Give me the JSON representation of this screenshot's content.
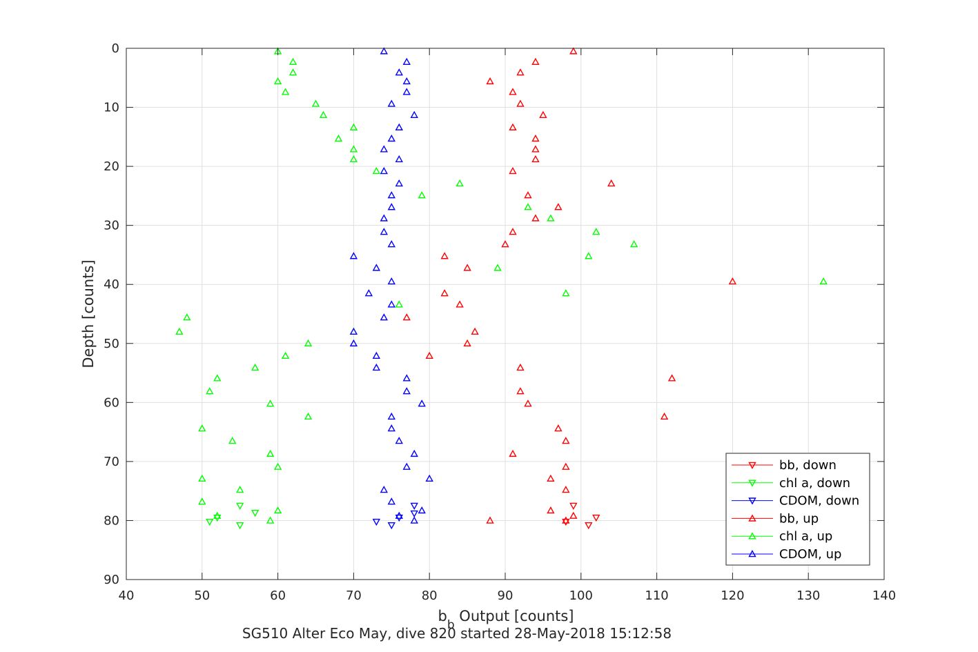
{
  "chart_data": {
    "type": "scatter",
    "title": "",
    "xlabel_main": "b",
    "xlabel_sub": "b",
    "xlabel_rest": " Output [counts]",
    "ylabel": "Depth [counts]",
    "caption": "SG510 Alter Eco May, dive 820 started 28-May-2018 15:12:58",
    "xlim": [
      40,
      140
    ],
    "ylim": [
      0,
      90
    ],
    "y_reversed": true,
    "grid": true,
    "legend_placement": "bottom-right",
    "xticks": [
      "40",
      "50",
      "60",
      "70",
      "80",
      "90",
      "100",
      "110",
      "120",
      "130",
      "140"
    ],
    "yticks": [
      "0",
      "10",
      "20",
      "30",
      "40",
      "50",
      "60",
      "70",
      "80",
      "90"
    ],
    "series": [
      {
        "name": "bb, down",
        "color": "#ff0000",
        "marker": "triangle-down",
        "points": [
          [
            99,
            77.5
          ],
          [
            102,
            79.5
          ],
          [
            101,
            80.8
          ]
        ]
      },
      {
        "name": "chl a, down",
        "color": "#00ff00",
        "marker": "triangle-down",
        "points": [
          [
            52,
            79.5
          ]
        ]
      },
      {
        "name": "CDOM, down",
        "color": "#0000ff",
        "marker": "triangle-down",
        "points": [
          [
            78,
            77.5
          ],
          [
            78,
            78.8
          ],
          [
            76,
            79.5
          ],
          [
            73,
            80.2
          ]
        ]
      },
      {
        "name": "bb, up",
        "color": "#ff0000",
        "marker": "triangle-up",
        "points": [
          [
            99,
            0.5
          ],
          [
            94,
            2.3
          ],
          [
            92,
            4.1
          ],
          [
            88,
            5.6
          ],
          [
            91,
            7.4
          ],
          [
            92,
            9.4
          ],
          [
            95,
            11.3
          ],
          [
            91,
            13.4
          ],
          [
            94,
            15.3
          ],
          [
            94,
            17.1
          ],
          [
            94,
            18.8
          ],
          [
            91,
            20.8
          ],
          [
            104,
            22.9
          ],
          [
            93,
            24.9
          ],
          [
            97,
            26.9
          ],
          [
            94,
            28.8
          ],
          [
            91,
            31.1
          ],
          [
            90,
            33.2
          ],
          [
            82,
            35.2
          ],
          [
            85,
            37.2
          ],
          [
            120,
            39.5
          ],
          [
            82,
            41.5
          ],
          [
            84,
            43.4
          ],
          [
            77,
            45.6
          ],
          [
            86,
            48.0
          ],
          [
            85,
            50.0
          ],
          [
            80,
            52.1
          ],
          [
            92,
            54.1
          ],
          [
            112,
            55.9
          ],
          [
            92,
            58.1
          ],
          [
            93,
            60.2
          ],
          [
            111,
            62.4
          ],
          [
            97,
            64.4
          ],
          [
            98,
            66.5
          ],
          [
            91,
            68.7
          ],
          [
            98,
            70.9
          ],
          [
            96,
            72.9
          ],
          [
            98,
            74.8
          ],
          [
            96,
            78.3
          ],
          [
            99,
            79.2
          ],
          [
            98,
            80.0
          ],
          [
            88,
            80.0
          ]
        ]
      },
      {
        "name": "chl a, up",
        "color": "#00ff00",
        "marker": "triangle-up",
        "points": [
          [
            60,
            0.5
          ],
          [
            62,
            2.3
          ],
          [
            62,
            4.1
          ],
          [
            60,
            5.6
          ],
          [
            61,
            7.4
          ],
          [
            65,
            9.4
          ],
          [
            66,
            11.3
          ],
          [
            70,
            13.4
          ],
          [
            68,
            15.3
          ],
          [
            70,
            17.1
          ],
          [
            70,
            18.8
          ],
          [
            73,
            20.8
          ],
          [
            84,
            22.9
          ],
          [
            79,
            24.9
          ],
          [
            93,
            26.9
          ],
          [
            96,
            28.8
          ],
          [
            102,
            31.1
          ],
          [
            107,
            33.2
          ],
          [
            101,
            35.2
          ],
          [
            89,
            37.2
          ],
          [
            132,
            39.5
          ],
          [
            98,
            41.5
          ],
          [
            76,
            43.4
          ],
          [
            48,
            45.6
          ],
          [
            47,
            48.0
          ],
          [
            64,
            50.0
          ],
          [
            61,
            52.1
          ],
          [
            57,
            54.1
          ],
          [
            52,
            55.9
          ],
          [
            51,
            58.1
          ],
          [
            59,
            60.2
          ],
          [
            64,
            62.4
          ],
          [
            50,
            64.4
          ],
          [
            54,
            66.5
          ],
          [
            59,
            68.7
          ],
          [
            60,
            70.9
          ],
          [
            50,
            72.9
          ],
          [
            55,
            74.8
          ],
          [
            50,
            76.8
          ],
          [
            60,
            78.3
          ],
          [
            52,
            79.2
          ],
          [
            59,
            80.0
          ]
        ]
      },
      {
        "name": "CDOM, up",
        "color": "#0000ff",
        "marker": "triangle-up",
        "points": [
          [
            74,
            0.5
          ],
          [
            77,
            2.3
          ],
          [
            76,
            4.1
          ],
          [
            77,
            5.6
          ],
          [
            77,
            7.4
          ],
          [
            75,
            9.4
          ],
          [
            78,
            11.3
          ],
          [
            76,
            13.4
          ],
          [
            75,
            15.3
          ],
          [
            74,
            17.1
          ],
          [
            76,
            18.8
          ],
          [
            74,
            20.8
          ],
          [
            76,
            22.9
          ],
          [
            75,
            24.9
          ],
          [
            75,
            26.9
          ],
          [
            74,
            28.8
          ],
          [
            74,
            31.1
          ],
          [
            75,
            33.2
          ],
          [
            70,
            35.2
          ],
          [
            73,
            37.2
          ],
          [
            75,
            39.5
          ],
          [
            72,
            41.5
          ],
          [
            75,
            43.4
          ],
          [
            74,
            45.6
          ],
          [
            70,
            48.0
          ],
          [
            70,
            50.0
          ],
          [
            73,
            52.1
          ],
          [
            73,
            54.1
          ],
          [
            77,
            55.9
          ],
          [
            77,
            58.1
          ],
          [
            79,
            60.2
          ],
          [
            75,
            62.4
          ],
          [
            75,
            64.4
          ],
          [
            76,
            66.5
          ],
          [
            78,
            68.7
          ],
          [
            77,
            70.9
          ],
          [
            80,
            72.9
          ],
          [
            74,
            74.8
          ],
          [
            75,
            76.8
          ],
          [
            79,
            78.3
          ],
          [
            76,
            79.2
          ],
          [
            78,
            80.0
          ]
        ]
      }
    ],
    "extra_points": {
      "chl_down_extra": [
        [
          51,
          80.2
        ],
        [
          55,
          80.8
        ],
        [
          57,
          78.7
        ],
        [
          55,
          77.5
        ]
      ],
      "cdom_down_extra": [
        [
          75,
          80.8
        ]
      ],
      "bb_down_extra": [
        [
          98,
          80.2
        ]
      ]
    }
  }
}
